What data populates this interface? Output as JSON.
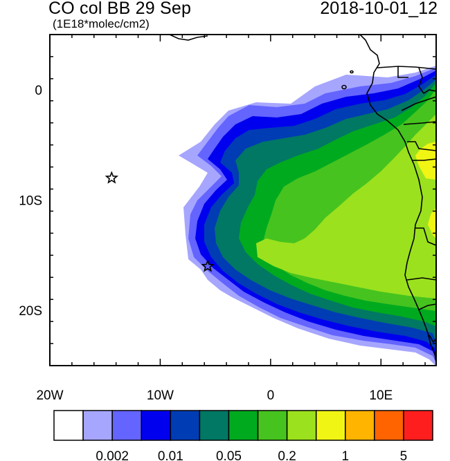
{
  "title": "CO col BB 29 Sep",
  "units": "(1E18*molec/cm2)",
  "timestamp": "2018-10-01_12",
  "map": {
    "lon_range": [
      -20,
      15
    ],
    "lat_range": [
      -25,
      5
    ],
    "x_ticks": [
      {
        "value": -20,
        "label": "20W"
      },
      {
        "value": -10,
        "label": "10W"
      },
      {
        "value": 0,
        "label": "0"
      },
      {
        "value": 10,
        "label": "10E"
      }
    ],
    "y_ticks": [
      {
        "value": 0,
        "label": "0"
      },
      {
        "value": -10,
        "label": "10S"
      },
      {
        "value": -20,
        "label": "20S"
      }
    ],
    "markers": [
      {
        "name": "star-marker-1",
        "lon": -14.4,
        "lat": -8.0,
        "symbol": "star"
      },
      {
        "name": "star-marker-2",
        "lon": -5.7,
        "lat": -16.0,
        "symbol": "star"
      }
    ]
  },
  "colorbar": {
    "colors": [
      "#ffffff",
      "#a6a6ff",
      "#6464ff",
      "#0000ee",
      "#003cb4",
      "#007864",
      "#00aa1e",
      "#46c31e",
      "#9be11e",
      "#f0f514",
      "#ffb400",
      "#ff6400",
      "#ff1e1e"
    ],
    "labels": [
      {
        "index": 2,
        "text": "0.002"
      },
      {
        "index": 4,
        "text": "0.01"
      },
      {
        "index": 6,
        "text": "0.05"
      },
      {
        "index": 8,
        "text": "0.2"
      },
      {
        "index": 10,
        "text": "1"
      },
      {
        "index": 12,
        "text": "5"
      }
    ]
  }
}
